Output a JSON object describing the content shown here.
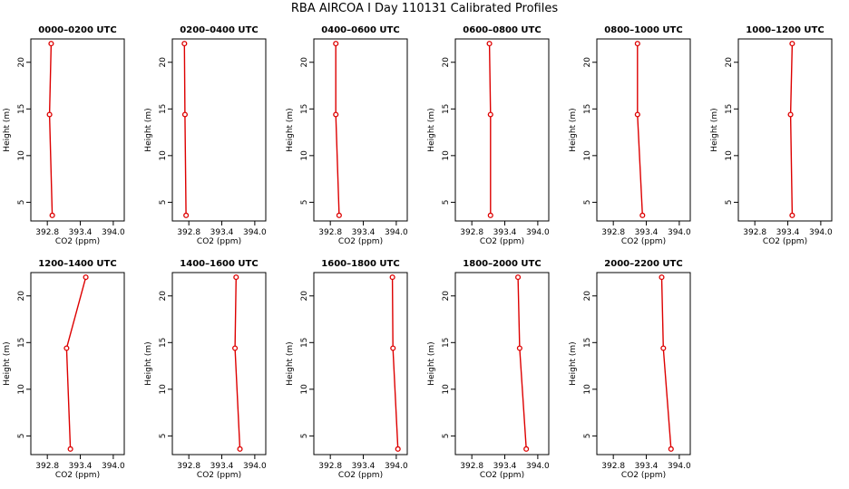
{
  "figure": {
    "title": "RBA AIRCOA I  Day 110131  Calibrated Profiles"
  },
  "colors": {
    "series": "#dd0000",
    "axis": "#000000"
  },
  "chart_data": [
    {
      "type": "line",
      "title": "0000–0200 UTC",
      "xlabel": "CO2 (ppm)",
      "ylabel": "Height (m)",
      "xlim": [
        392.5,
        394.2
      ],
      "ylim": [
        3,
        22.5
      ],
      "xticks": [
        "392.8",
        "393.4",
        "394.0"
      ],
      "yticks": [
        "5",
        "10",
        "15",
        "20"
      ],
      "series": [
        {
          "x": [
            392.87,
            392.84,
            392.89
          ],
          "y": [
            22,
            14.4,
            3.6
          ]
        }
      ]
    },
    {
      "type": "line",
      "title": "0200–0400 UTC",
      "xlabel": "CO2 (ppm)",
      "ylabel": "Height (m)",
      "xlim": [
        392.5,
        394.2
      ],
      "ylim": [
        3,
        22.5
      ],
      "xticks": [
        "392.8",
        "393.4",
        "394.0"
      ],
      "yticks": [
        "5",
        "10",
        "15",
        "20"
      ],
      "series": [
        {
          "x": [
            392.72,
            392.73,
            392.75
          ],
          "y": [
            22,
            14.4,
            3.6
          ]
        }
      ]
    },
    {
      "type": "line",
      "title": "0400–0600 UTC",
      "xlabel": "CO2 (ppm)",
      "ylabel": "Height (m)",
      "xlim": [
        392.5,
        394.2
      ],
      "ylim": [
        3,
        22.5
      ],
      "xticks": [
        "392.8",
        "393.4",
        "394.0"
      ],
      "yticks": [
        "5",
        "10",
        "15",
        "20"
      ],
      "series": [
        {
          "x": [
            392.9,
            392.9,
            392.96
          ],
          "y": [
            22,
            14.4,
            3.6
          ]
        }
      ]
    },
    {
      "type": "line",
      "title": "0600–0800 UTC",
      "xlabel": "CO2 (ppm)",
      "ylabel": "Height (m)",
      "xlim": [
        392.5,
        394.2
      ],
      "ylim": [
        3,
        22.5
      ],
      "xticks": [
        "392.8",
        "393.4",
        "394.0"
      ],
      "yticks": [
        "5",
        "10",
        "15",
        "20"
      ],
      "series": [
        {
          "x": [
            393.12,
            393.14,
            393.14
          ],
          "y": [
            22,
            14.4,
            3.6
          ]
        }
      ]
    },
    {
      "type": "line",
      "title": "0800–1000 UTC",
      "xlabel": "CO2 (ppm)",
      "ylabel": "Height (m)",
      "xlim": [
        392.5,
        394.2
      ],
      "ylim": [
        3,
        22.5
      ],
      "xticks": [
        "392.8",
        "393.4",
        "394.0"
      ],
      "yticks": [
        "5",
        "10",
        "15",
        "20"
      ],
      "series": [
        {
          "x": [
            393.24,
            393.24,
            393.33
          ],
          "y": [
            22,
            14.4,
            3.6
          ]
        }
      ]
    },
    {
      "type": "line",
      "title": "1000–1200 UTC",
      "xlabel": "CO2 (ppm)",
      "ylabel": "Height (m)",
      "xlim": [
        392.5,
        394.2
      ],
      "ylim": [
        3,
        22.5
      ],
      "xticks": [
        "392.8",
        "393.4",
        "394.0"
      ],
      "yticks": [
        "5",
        "10",
        "15",
        "20"
      ],
      "series": [
        {
          "x": [
            393.48,
            393.45,
            393.48
          ],
          "y": [
            22,
            14.4,
            3.6
          ]
        }
      ]
    },
    {
      "type": "line",
      "title": "1200–1400 UTC",
      "xlabel": "CO2 (ppm)",
      "ylabel": "Height (m)",
      "xlim": [
        392.5,
        394.2
      ],
      "ylim": [
        3,
        22.5
      ],
      "xticks": [
        "392.8",
        "393.4",
        "394.0"
      ],
      "yticks": [
        "5",
        "10",
        "15",
        "20"
      ],
      "series": [
        {
          "x": [
            393.5,
            393.15,
            393.22
          ],
          "y": [
            22,
            14.4,
            3.6
          ]
        }
      ]
    },
    {
      "type": "line",
      "title": "1400–1600 UTC",
      "xlabel": "CO2 (ppm)",
      "ylabel": "Height (m)",
      "xlim": [
        392.5,
        394.2
      ],
      "ylim": [
        3,
        22.5
      ],
      "xticks": [
        "392.8",
        "393.4",
        "394.0"
      ],
      "yticks": [
        "5",
        "10",
        "15",
        "20"
      ],
      "series": [
        {
          "x": [
            393.66,
            393.64,
            393.73
          ],
          "y": [
            22,
            14.4,
            3.6
          ]
        }
      ]
    },
    {
      "type": "line",
      "title": "1600–1800 UTC",
      "xlabel": "CO2 (ppm)",
      "ylabel": "Height (m)",
      "xlim": [
        392.5,
        394.2
      ],
      "ylim": [
        3,
        22.5
      ],
      "xticks": [
        "392.8",
        "393.4",
        "394.0"
      ],
      "yticks": [
        "5",
        "10",
        "15",
        "20"
      ],
      "series": [
        {
          "x": [
            393.93,
            393.94,
            394.03
          ],
          "y": [
            22,
            14.4,
            3.6
          ]
        }
      ]
    },
    {
      "type": "line",
      "title": "1800–2000 UTC",
      "xlabel": "CO2 (ppm)",
      "ylabel": "Height (m)",
      "xlim": [
        392.5,
        394.2
      ],
      "ylim": [
        3,
        22.5
      ],
      "xticks": [
        "392.8",
        "393.4",
        "394.0"
      ],
      "yticks": [
        "5",
        "10",
        "15",
        "20"
      ],
      "series": [
        {
          "x": [
            393.64,
            393.67,
            393.79
          ],
          "y": [
            22,
            14.4,
            3.6
          ]
        }
      ]
    },
    {
      "type": "line",
      "title": "2000–2200 UTC",
      "xlabel": "CO2 (ppm)",
      "ylabel": "Height (m)",
      "xlim": [
        392.5,
        394.2
      ],
      "ylim": [
        3,
        22.5
      ],
      "xticks": [
        "392.8",
        "393.4",
        "394.0"
      ],
      "yticks": [
        "5",
        "10",
        "15",
        "20"
      ],
      "series": [
        {
          "x": [
            393.68,
            393.71,
            393.85
          ],
          "y": [
            22,
            14.4,
            3.6
          ]
        }
      ]
    }
  ]
}
